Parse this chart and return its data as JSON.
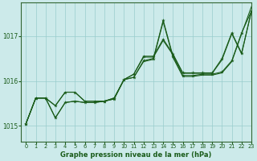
{
  "title": "Graphe pression niveau de la mer (hPa)",
  "background_color": "#cceaea",
  "grid_color": "#99cccc",
  "line_color": "#1a5c1a",
  "xlim": [
    -0.5,
    23
  ],
  "ylim": [
    1014.65,
    1017.75
  ],
  "yticks": [
    1015,
    1016,
    1017
  ],
  "xticks": [
    0,
    1,
    2,
    3,
    4,
    5,
    6,
    7,
    8,
    9,
    10,
    11,
    12,
    13,
    14,
    15,
    16,
    17,
    18,
    19,
    20,
    21,
    22,
    23
  ],
  "series": [
    {
      "data": [
        1015.05,
        1015.62,
        1015.62,
        1015.18,
        1015.55,
        1015.55,
        1015.52,
        1015.52,
        1015.52,
        1015.6,
        1016.03,
        1016.07,
        1016.42,
        1016.48,
        1017.35,
        1016.52,
        1016.1,
        1016.1,
        1016.13,
        1016.13,
        1016.18,
        1016.42,
        1017.05,
        1017.55
      ],
      "marker": true
    },
    {
      "data": [
        1015.05,
        1015.62,
        1015.62,
        1015.45,
        1015.75,
        1015.75,
        1015.55,
        1015.55,
        1015.55,
        1015.6,
        1016.03,
        1016.13,
        1016.52,
        1016.52,
        1016.93,
        1016.58,
        1016.17,
        1016.17,
        1016.17,
        1016.17,
        1016.48,
        1017.05,
        1016.62,
        1017.55
      ],
      "marker": true
    },
    {
      "data": [
        1015.05,
        1015.62,
        1015.62,
        1015.45,
        1015.75,
        1015.75,
        1015.55,
        1015.55,
        1015.55,
        1015.6,
        1016.03,
        1016.13,
        1016.52,
        1016.52,
        1016.93,
        1016.58,
        1016.17,
        1016.17,
        1016.17,
        1016.17,
        1016.48,
        1017.05,
        1016.62,
        1017.55
      ],
      "marker": false
    },
    {
      "data": [
        1015.05,
        1015.62,
        1015.62,
        1015.18,
        1015.55,
        1015.55,
        1015.52,
        1015.52,
        1015.52,
        1015.6,
        1016.03,
        1016.07,
        1016.42,
        1016.48,
        1017.35,
        1016.52,
        1016.1,
        1016.1,
        1016.13,
        1016.13,
        1016.18,
        1016.42,
        1017.05,
        1017.55
      ],
      "marker": false
    }
  ]
}
